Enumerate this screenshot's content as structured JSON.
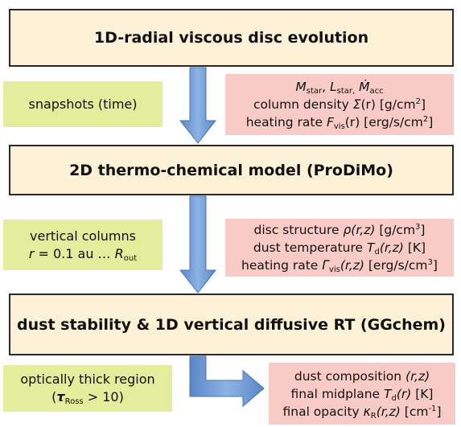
{
  "boxes": {
    "disc_evolution": "1D-radial viscous disc evolution",
    "prodimo": "2D thermo-chemical model (ProDiMo)",
    "ggchem": "dust stability & 1D vertical diffusive RT (GGchem)"
  },
  "inputs": {
    "snapshots": "snapshots (time)",
    "columns_line1": "vertical columns",
    "columns_line2_a": "r",
    "columns_line2_b": " = 0.1 au … ",
    "columns_line2_c": "R",
    "columns_line2_sub": "out",
    "thick_line1": "optically thick region",
    "thick_open": "(",
    "thick_tau": "τ",
    "thick_tau_sub": "Ross",
    "thick_rest": " > 10)"
  },
  "outputs1": {
    "m": "M",
    "m_sub": "star",
    "sep1": ", ",
    "l": "L",
    "l_sub": "star,",
    "sep2": " ",
    "macc": "Ṁ",
    "macc_sub": "acc",
    "col_label": "column density ",
    "col_sym": "Σ",
    "col_arg": "(r)",
    "col_unit": " [g/cm",
    "col_pow": "2",
    "col_close": "]",
    "heat_label": "heating rate ",
    "heat_sym": "F",
    "heat_sub": "vis",
    "heat_arg": "(r)",
    "heat_unit": " [erg/s/cm",
    "heat_pow": "2",
    "heat_close": "]"
  },
  "outputs2": {
    "struct_label": "disc structure ",
    "struct_sym": "ρ",
    "struct_arg": "(r,z)",
    "struct_unit": " [g/cm",
    "struct_pow": "3",
    "struct_close": "]",
    "temp_label": "dust temperature ",
    "temp_sym": "T",
    "temp_sub": "d",
    "temp_arg": "(r,z)",
    "temp_unit": " [K]",
    "heat_label": "heating rate ",
    "heat_sym": "Γ",
    "heat_sub": "vis",
    "heat_arg": "(r,z)",
    "heat_unit": " [erg/s/cm",
    "heat_pow": "3",
    "heat_close": "]"
  },
  "outputs3": {
    "comp_label": "dust composition ",
    "comp_arg": "(r,z)",
    "mid_label": "final midplane ",
    "mid_sym": "T",
    "mid_sub": "d",
    "mid_arg": "(r)",
    "mid_unit": " [K]",
    "opac_label": "final opacity ",
    "opac_sym": "κ",
    "opac_sub": "R",
    "opac_arg": "(r,z)",
    "opac_unit": " [cm",
    "opac_pow": "-1",
    "opac_close": "]"
  },
  "colors": {
    "main_fill": "#fdf1d7",
    "input_fill": "#e3ed9c",
    "output_fill": "#f8cbc6",
    "arrow": "#6f9bd6"
  }
}
